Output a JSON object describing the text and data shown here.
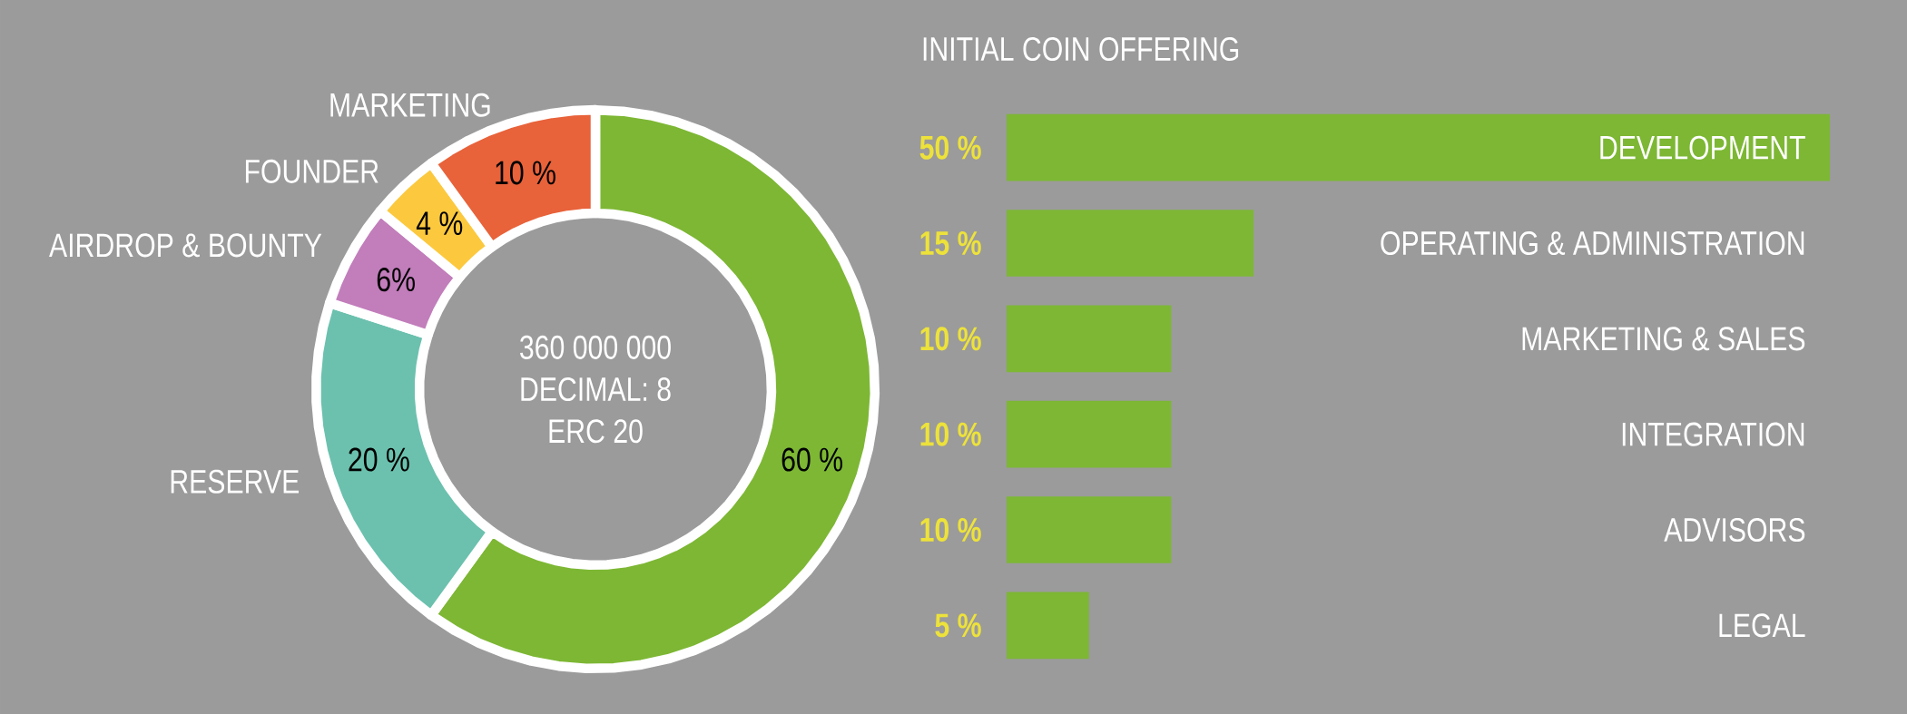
{
  "chart_data": [
    {
      "type": "donut",
      "categories": [
        null,
        "RESERVE",
        "AIRDROP & BOUNTY",
        "FOUNDER",
        "MARKETING"
      ],
      "values": [
        60,
        20,
        6,
        4,
        10
      ],
      "colors": [
        "#7db734",
        "#6bc1ae",
        "#c27dbb",
        "#fcc93e",
        "#e8623a"
      ],
      "value_labels": [
        "60 %",
        "20 %",
        "6%",
        "4 %",
        "10 %"
      ],
      "annotations": [
        "360 000 000",
        "DECIMAL: 8",
        "ERC 20"
      ]
    },
    {
      "type": "bar",
      "orientation": "horizontal",
      "title": "INITIAL COIN OFFERING",
      "categories": [
        "DEVELOPMENT",
        "OPERATING & ADMINISTRATION",
        "MARKETING & SALES",
        "INTEGRATION",
        "ADVISORS",
        "LEGAL"
      ],
      "values": [
        50,
        15,
        10,
        10,
        10,
        5
      ],
      "color": "#7db734",
      "value_labels": [
        "50 %",
        "15 %",
        "10 %",
        "10 %",
        "10 %",
        "5 %"
      ]
    }
  ]
}
